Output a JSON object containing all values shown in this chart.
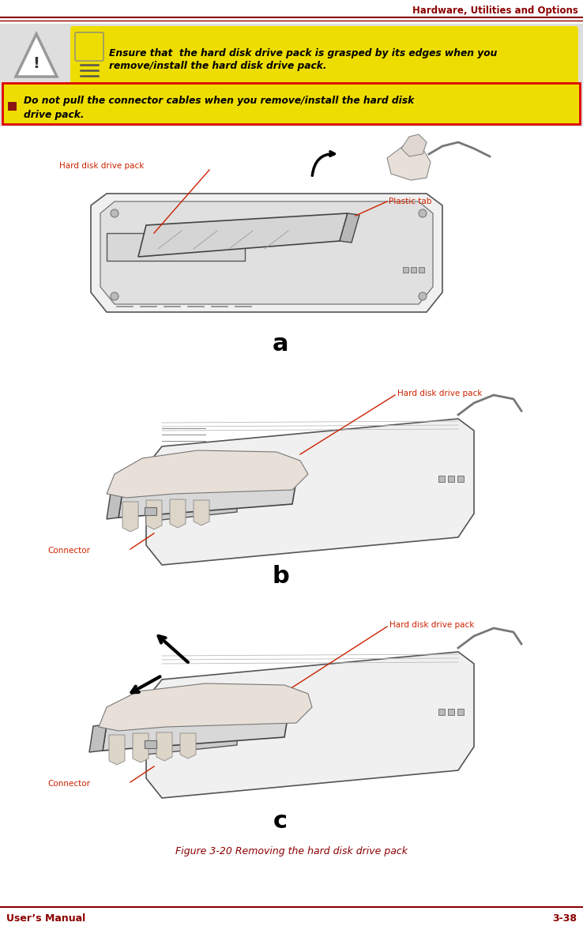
{
  "page_title": "Hardware, Utilities and Options",
  "footer_left": "User’s Manual",
  "footer_right": "3-38",
  "warning_text1_line1": "Ensure that  the hard disk drive pack is grasped by its edges when you",
  "warning_text1_line2": "remove/install the hard disk drive pack.",
  "warning_text2_line1": "Do not pull the connector cables when you remove/install the hard disk",
  "warning_text2_line2": "drive pack.",
  "fig_caption": "Figure 3-20 Removing the hard disk drive pack",
  "label_a_hdp": "Hard disk drive pack",
  "label_a_plastic": "Plastic tab",
  "label_b_hdp": "Hard disk drive pack",
  "label_b_connector": "Connector",
  "label_c_hdp": "Hard disk drive pack",
  "label_c_connector": "Connector",
  "dark_red": "#8B0000",
  "red_label": "#CC2200",
  "red_border": "#DD0000",
  "yellow_bg": "#EEDD00",
  "gray_bg": "#DEDEDE",
  "black": "#000000",
  "white": "#FFFFFF",
  "mid_gray": "#888888",
  "light_gray": "#CCCCCC",
  "dark_gray": "#444444"
}
